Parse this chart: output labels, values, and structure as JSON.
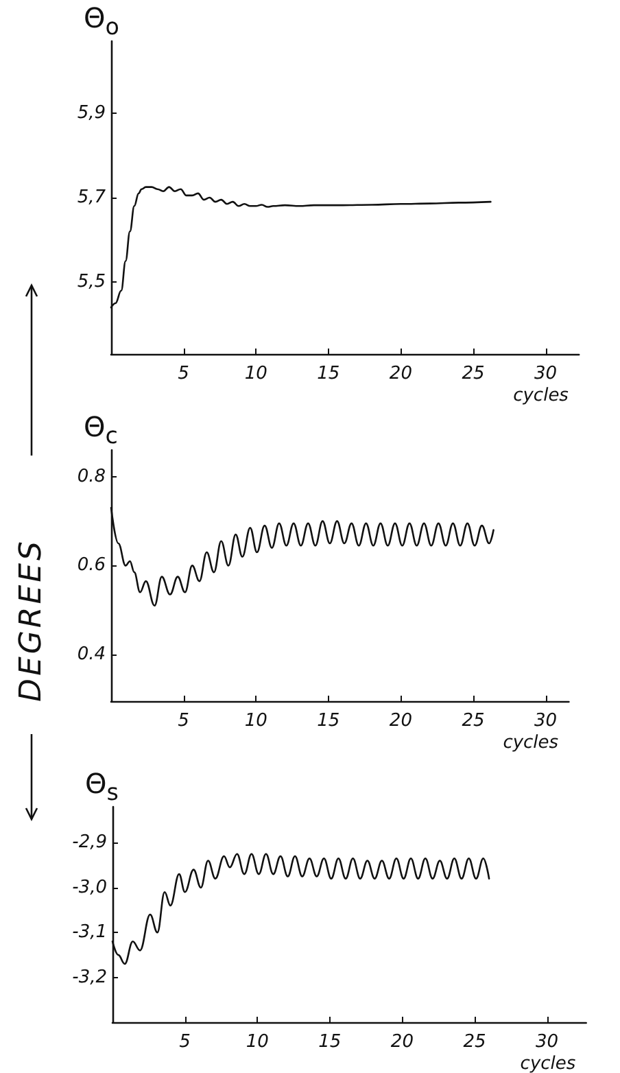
{
  "chart_data": [
    {
      "type": "line",
      "ylabel": "Θ$_{o}$",
      "xlabel": "cycles",
      "x": [
        0,
        0.3,
        0.7,
        1.0,
        1.3,
        1.6,
        1.9,
        2.1,
        2.4,
        2.8,
        3.2,
        3.6,
        4.0,
        4.4,
        4.8,
        5.2,
        5.6,
        6.0,
        6.4,
        6.8,
        7.2,
        7.6,
        8.0,
        8.4,
        8.8,
        9.2,
        9.6,
        10,
        10.4,
        10.8,
        11.2,
        12,
        13,
        14,
        16,
        18,
        20,
        22,
        24,
        26.2
      ],
      "series": [
        {
          "color": "#111111",
          "values": [
            5.44,
            5.45,
            5.48,
            5.55,
            5.62,
            5.68,
            5.71,
            5.72,
            5.725,
            5.725,
            5.72,
            5.715,
            5.725,
            5.715,
            5.72,
            5.705,
            5.705,
            5.71,
            5.695,
            5.7,
            5.69,
            5.695,
            5.685,
            5.69,
            5.68,
            5.685,
            5.68,
            5.68,
            5.683,
            5.678,
            5.68,
            5.682,
            5.68,
            5.682,
            5.682,
            5.683,
            5.685,
            5.686,
            5.688,
            5.69
          ]
        }
      ],
      "xlim": [
        0,
        32.3
      ],
      "xticks": [
        5,
        10,
        15,
        20,
        25,
        30
      ],
      "ylim": [
        5.33,
        6.07
      ],
      "yticks": [
        {
          "value": 5.5,
          "label": "5,5"
        },
        {
          "value": 5.7,
          "label": "5,7"
        },
        {
          "value": 5.9,
          "label": "5,9"
        }
      ]
    },
    {
      "type": "line",
      "ylabel": "Θ$_{c}$",
      "xlabel": "cycles",
      "annotations": [
        "DEGREES"
      ],
      "x": [
        0,
        0.5,
        1.0,
        1.3,
        1.6,
        2.0,
        2.4,
        3.0,
        3.5,
        4.07,
        4.6,
        5.1,
        5.6,
        6.1,
        6.6,
        7.1,
        7.6,
        8.1,
        8.6,
        9.06,
        9.6,
        10.07,
        10.6,
        11.1,
        11.6,
        12.1,
        12.6,
        13.1,
        13.6,
        14.1,
        14.6,
        15.1,
        15.6,
        16.1,
        16.6,
        17.1,
        17.6,
        18.1,
        18.6,
        19.1,
        19.6,
        20.1,
        20.6,
        21.1,
        21.6,
        22.1,
        22.6,
        23.1,
        23.6,
        24.1,
        24.6,
        25.1,
        25.6,
        26.1,
        26.4
      ],
      "series": [
        {
          "color": "#111111",
          "values": [
            0.73,
            0.65,
            0.6,
            0.61,
            0.585,
            0.54,
            0.565,
            0.51,
            0.575,
            0.535,
            0.575,
            0.54,
            0.6,
            0.565,
            0.63,
            0.585,
            0.655,
            0.6,
            0.67,
            0.62,
            0.685,
            0.63,
            0.69,
            0.64,
            0.695,
            0.645,
            0.695,
            0.645,
            0.695,
            0.645,
            0.7,
            0.65,
            0.7,
            0.65,
            0.695,
            0.645,
            0.695,
            0.645,
            0.695,
            0.645,
            0.695,
            0.645,
            0.695,
            0.645,
            0.695,
            0.645,
            0.695,
            0.645,
            0.695,
            0.645,
            0.695,
            0.645,
            0.69,
            0.65,
            0.68
          ]
        }
      ],
      "xlim": [
        0,
        31.6
      ],
      "xticks": [
        5,
        10,
        15,
        20,
        25,
        30
      ],
      "ylim": [
        0.295,
        0.86
      ],
      "yticks": [
        0.4,
        0.6,
        0.8
      ]
    },
    {
      "type": "line",
      "ylabel": "Θ$_{s}$",
      "xlabel": "cycles",
      "x": [
        0,
        0.4,
        0.85,
        1.4,
        1.9,
        2.6,
        3.1,
        3.6,
        4.0,
        4.6,
        5.0,
        5.6,
        6.1,
        6.6,
        7.1,
        7.7,
        8.1,
        8.6,
        9.1,
        9.6,
        10.1,
        10.6,
        11.1,
        11.6,
        12.1,
        12.6,
        13.1,
        13.6,
        14.1,
        14.6,
        15.1,
        15.6,
        16.1,
        16.6,
        17.1,
        17.6,
        18.1,
        18.6,
        19.1,
        19.6,
        20.1,
        20.6,
        21.1,
        21.6,
        22.1,
        22.6,
        23.1,
        23.6,
        24.1,
        24.6,
        25.1,
        25.6,
        26.0
      ],
      "series": [
        {
          "color": "#111111",
          "values": [
            -3.12,
            -3.15,
            -3.17,
            -3.12,
            -3.14,
            -3.06,
            -3.1,
            -3.01,
            -3.04,
            -2.97,
            -3.01,
            -2.96,
            -3.0,
            -2.94,
            -2.98,
            -2.93,
            -2.955,
            -2.925,
            -2.97,
            -2.925,
            -2.97,
            -2.925,
            -2.97,
            -2.93,
            -2.975,
            -2.93,
            -2.975,
            -2.935,
            -2.975,
            -2.935,
            -2.98,
            -2.935,
            -2.98,
            -2.935,
            -2.98,
            -2.94,
            -2.98,
            -2.94,
            -2.98,
            -2.935,
            -2.98,
            -2.935,
            -2.98,
            -2.935,
            -2.98,
            -2.94,
            -2.98,
            -2.935,
            -2.98,
            -2.935,
            -2.98,
            -2.935,
            -2.98
          ]
        }
      ],
      "xlim": [
        0,
        32.7
      ],
      "xticks": [
        5,
        10,
        15,
        20,
        25,
        30
      ],
      "ylim": [
        -3.3,
        -2.82
      ],
      "yticks": [
        {
          "value": -3.2,
          "label": "-3,2"
        },
        {
          "value": -3.1,
          "label": "-3,1"
        },
        {
          "value": -3.0,
          "label": "-3,0"
        },
        {
          "value": -2.9,
          "label": "-2,9"
        }
      ]
    }
  ]
}
